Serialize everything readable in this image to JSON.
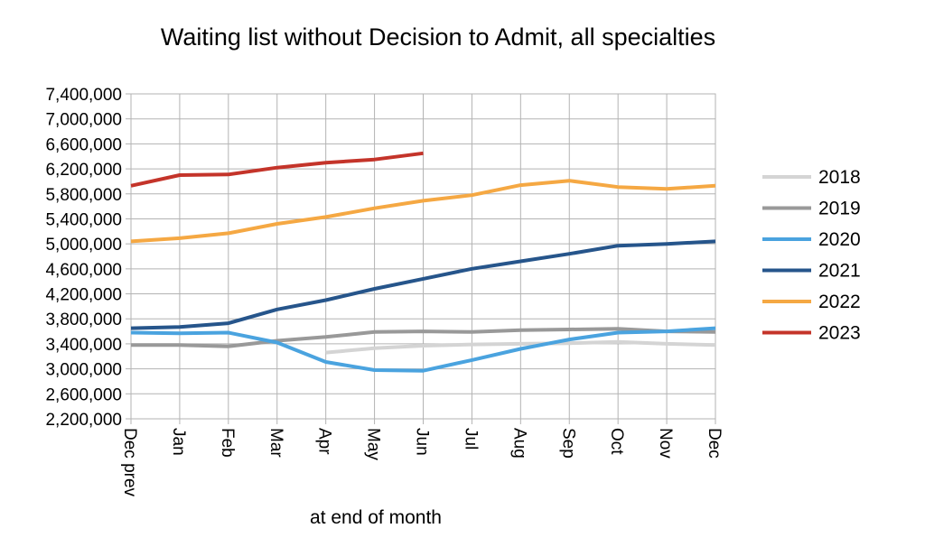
{
  "chart_data": {
    "type": "line",
    "title": "Waiting list without Decision to Admit, all specialties",
    "xlabel": "at end of month",
    "ylabel": "",
    "categories": [
      "Dec prev",
      "Jan",
      "Feb",
      "Mar",
      "Apr",
      "May",
      "Jun",
      "Jul",
      "Aug",
      "Sep",
      "Oct",
      "Nov",
      "Dec"
    ],
    "ylim": [
      2200000,
      7400000
    ],
    "yticks": [
      "2,200,000",
      "2,600,000",
      "3,000,000",
      "3,400,000",
      "3,800,000",
      "4,200,000",
      "4,600,000",
      "5,000,000",
      "5,400,000",
      "5,800,000",
      "6,200,000",
      "6,600,000",
      "7,000,000",
      "7,400,000"
    ],
    "ytick_values": [
      2200000,
      2600000,
      3000000,
      3400000,
      3800000,
      4200000,
      4600000,
      5000000,
      5400000,
      5800000,
      6200000,
      6600000,
      7000000,
      7400000
    ],
    "grid": true,
    "legend": "right",
    "series": [
      {
        "name": "2018",
        "color": "#d4d4d4",
        "values": [
          null,
          null,
          null,
          null,
          3260000,
          3330000,
          3370000,
          3390000,
          3400000,
          3410000,
          3430000,
          3400000,
          3380000
        ]
      },
      {
        "name": "2019",
        "color": "#999999",
        "values": [
          3380000,
          3380000,
          3360000,
          3450000,
          3510000,
          3590000,
          3600000,
          3590000,
          3620000,
          3630000,
          3640000,
          3600000,
          3590000
        ]
      },
      {
        "name": "2020",
        "color": "#4aa3df",
        "values": [
          3580000,
          3570000,
          3580000,
          3420000,
          3110000,
          2980000,
          2970000,
          3140000,
          3320000,
          3470000,
          3580000,
          3600000,
          3650000
        ]
      },
      {
        "name": "2021",
        "color": "#26558b",
        "values": [
          3650000,
          3670000,
          3730000,
          3950000,
          4100000,
          4280000,
          4440000,
          4600000,
          4720000,
          4840000,
          4970000,
          5000000,
          5040000
        ]
      },
      {
        "name": "2022",
        "color": "#f5a843",
        "values": [
          5040000,
          5090000,
          5170000,
          5320000,
          5430000,
          5570000,
          5690000,
          5780000,
          5940000,
          6010000,
          5910000,
          5880000,
          5930000
        ]
      },
      {
        "name": "2023",
        "color": "#c4342a",
        "values": [
          5930000,
          6100000,
          6110000,
          6220000,
          6300000,
          6350000,
          6450000,
          null,
          null,
          null,
          null,
          null,
          null
        ]
      }
    ]
  }
}
